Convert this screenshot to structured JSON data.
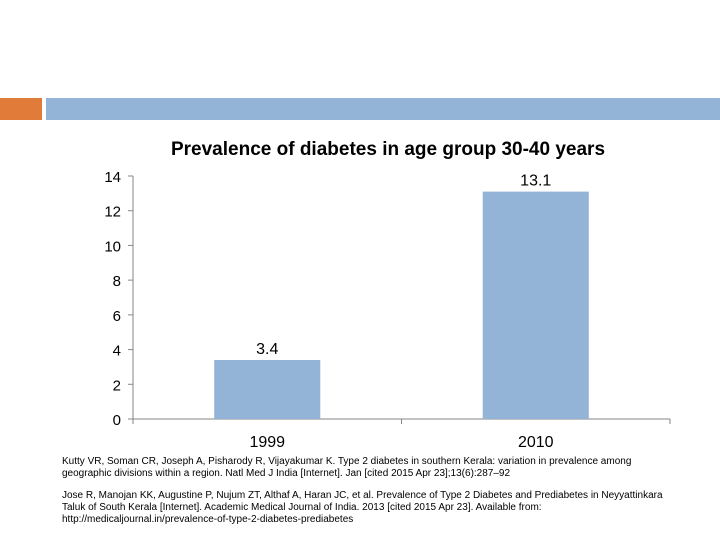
{
  "colors": {
    "accent_square": "#e07b39",
    "accent_bar": "#93b4d6",
    "bar_fill": "#93b4d6",
    "axis": "#868686"
  },
  "chart_data": {
    "type": "bar",
    "title": "Prevalence of diabetes in age group 30-40 years",
    "categories": [
      "1999",
      "2010"
    ],
    "values": [
      3.4,
      13.1
    ],
    "data_labels": [
      "3.4",
      "13.1"
    ],
    "ylim": [
      0,
      14
    ],
    "yticks": [
      0,
      2,
      4,
      6,
      8,
      10,
      12,
      14
    ],
    "ytick_labels": [
      "0",
      "2",
      "4",
      "6",
      "8",
      "10",
      "12",
      "14"
    ],
    "xlabel": "",
    "ylabel": "",
    "grid": false,
    "legend": "none"
  },
  "references": [
    "Kutty VR, Soman CR, Joseph A, Pisharody R, Vijayakumar K. Type 2 diabetes in southern Kerala: variation in prevalence among geographic divisions within a region. Natl Med J India [Internet]. Jan [cited 2015 Apr 23];13(6):287–92",
    "Jose R, Manojan KK, Augustine P, Nujum ZT, Althaf A, Haran JC, et al. Prevalence of Type 2 Diabetes and Prediabetes in Neyyattinkara Taluk of South Kerala [Internet]. Academic Medical Journal of India. 2013 [cited 2015 Apr 23]. Available from: http://medicaljournal.in/prevalence-of-type-2-diabetes-prediabetes"
  ]
}
